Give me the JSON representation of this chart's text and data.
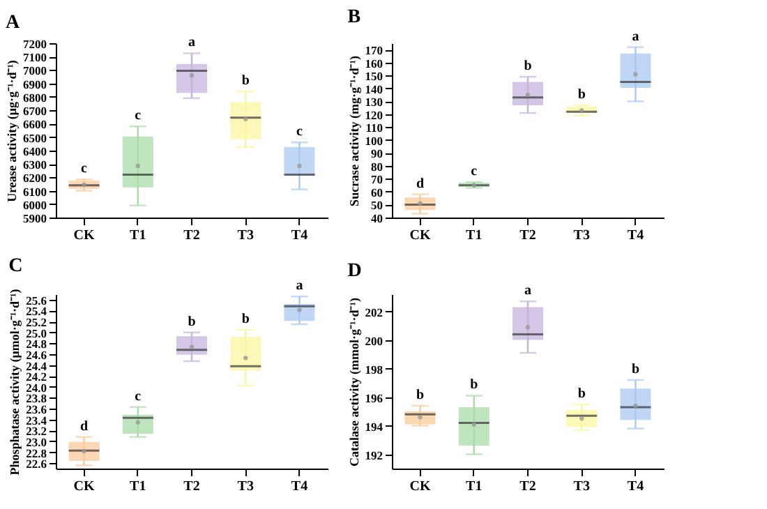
{
  "chart_data": [
    {
      "type": "box",
      "title": "A",
      "ylabel": "Urease activity (μg·g⁻¹·d⁻¹)",
      "categories": [
        "CK",
        "T1",
        "T2",
        "T3",
        "T4"
      ],
      "colors": [
        "#fbc99a",
        "#a8dca8",
        "#c5b3dd",
        "#fbf5a0",
        "#a9c8f2"
      ],
      "ylim": [
        5900,
        7200
      ],
      "yticks": [
        5900,
        6000,
        6100,
        6200,
        6300,
        6400,
        6500,
        6600,
        6700,
        6800,
        6900,
        7000,
        7100,
        7200
      ],
      "grid": false,
      "boxes": [
        {
          "low": 6100,
          "q1": 6115,
          "median": 6140,
          "q3": 6175,
          "high": 6185,
          "mean": 6145
        },
        {
          "low": 5990,
          "q1": 6125,
          "median": 6220,
          "q3": 6505,
          "high": 6580,
          "mean": 6285
        },
        {
          "low": 6790,
          "q1": 6830,
          "median": 6995,
          "q3": 7045,
          "high": 7125,
          "mean": 6960
        },
        {
          "low": 6425,
          "q1": 6485,
          "median": 6645,
          "q3": 6760,
          "high": 6840,
          "mean": 6635
        },
        {
          "low": 6110,
          "q1": 6215,
          "median": 6220,
          "q3": 6425,
          "high": 6460,
          "mean": 6285
        }
      ],
      "annotations": [
        {
          "text": "c",
          "x": "CK",
          "y": 6185
        },
        {
          "text": "c",
          "x": "T1",
          "y": 6580
        },
        {
          "text": "a",
          "x": "T2",
          "y": 7125
        },
        {
          "text": "b",
          "x": "T3",
          "y": 6840
        },
        {
          "text": "c",
          "x": "T4",
          "y": 6460
        }
      ]
    },
    {
      "type": "box",
      "title": "B",
      "ylabel": "Sucrase activity (mg·g⁻¹·d⁻¹)",
      "categories": [
        "CK",
        "T1",
        "T2",
        "T3",
        "T4"
      ],
      "colors": [
        "#fbc99a",
        "#a8dca8",
        "#c5b3dd",
        "#fbf5a0",
        "#a9c8f2"
      ],
      "ylim": [
        40,
        175
      ],
      "yticks": [
        40,
        50,
        60,
        70,
        80,
        90,
        100,
        110,
        120,
        130,
        140,
        150,
        160,
        170
      ],
      "grid": false,
      "boxes": [
        {
          "low": 43,
          "q1": 46,
          "median": 50,
          "q3": 55.5,
          "high": 58,
          "mean": 51
        },
        {
          "low": 63,
          "q1": 64,
          "median": 65,
          "q3": 67,
          "high": 67.5,
          "mean": 65
        },
        {
          "low": 121,
          "q1": 127,
          "median": 133,
          "q3": 145,
          "high": 149,
          "mean": 135
        },
        {
          "low": 119,
          "q1": 121,
          "median": 122,
          "q3": 126,
          "high": 127,
          "mean": 123
        },
        {
          "low": 130,
          "q1": 140.5,
          "median": 145,
          "q3": 167,
          "high": 172,
          "mean": 151
        }
      ],
      "annotations": [
        {
          "text": "d",
          "x": "CK",
          "y": 58
        },
        {
          "text": "c",
          "x": "T1",
          "y": 67.5
        },
        {
          "text": "b",
          "x": "T2",
          "y": 149
        },
        {
          "text": "b",
          "x": "T3",
          "y": 127
        },
        {
          "text": "a",
          "x": "T4",
          "y": 172
        }
      ]
    },
    {
      "type": "box",
      "title": "C",
      "ylabel": "Phosphatase activity (μmol·g⁻¹·d⁻¹)",
      "categories": [
        "CK",
        "T1",
        "T2",
        "T3",
        "T4"
      ],
      "colors": [
        "#fbc99a",
        "#a8dca8",
        "#c5b3dd",
        "#fbf5a0",
        "#a9c8f2"
      ],
      "ylim": [
        22.5,
        25.7
      ],
      "yticks": [
        22.6,
        22.8,
        {
          "value": 23,
          "label": "23.0"
        },
        23.2,
        23.4,
        23.6,
        23.8,
        {
          "value": 24,
          "label": "24.0"
        },
        24.2,
        24.4,
        24.6,
        24.8,
        {
          "value": 25,
          "label": "25.0"
        },
        25.2,
        25.4,
        25.6
      ],
      "grid": false,
      "boxes": [
        {
          "low": 22.56,
          "q1": 22.64,
          "median": 22.83,
          "q3": 22.99,
          "high": 23.08,
          "mean": 22.82
        },
        {
          "low": 23.08,
          "q1": 23.14,
          "median": 23.43,
          "q3": 23.49,
          "high": 23.63,
          "mean": 23.35
        },
        {
          "low": 24.47,
          "q1": 24.59,
          "median": 24.68,
          "q3": 24.93,
          "high": 25.0,
          "mean": 24.73
        },
        {
          "low": 24.02,
          "q1": 24.3,
          "median": 24.38,
          "q3": 24.92,
          "high": 25.05,
          "mean": 24.53
        },
        {
          "low": 25.15,
          "q1": 25.21,
          "median": 25.48,
          "q3": 25.52,
          "high": 25.66,
          "mean": 25.41
        }
      ],
      "annotations": [
        {
          "text": "d",
          "x": "CK",
          "y": 23.08
        },
        {
          "text": "c",
          "x": "T1",
          "y": 23.63
        },
        {
          "text": "b",
          "x": "T2",
          "y": 25.0
        },
        {
          "text": "b",
          "x": "T3",
          "y": 25.05
        },
        {
          "text": "a",
          "x": "T4",
          "y": 25.66
        }
      ]
    },
    {
      "type": "box",
      "title": "D",
      "ylabel": "Catalase activity (mmol·g⁻¹·d⁻¹)",
      "categories": [
        "CK",
        "T1",
        "T2",
        "T3",
        "T4"
      ],
      "colors": [
        "#fbc99a",
        "#a8dca8",
        "#c5b3dd",
        "#fbf5a0",
        "#a9c8f2"
      ],
      "ylim": [
        191,
        203.2
      ],
      "yticks": [
        192,
        194,
        196,
        198,
        200,
        202
      ],
      "grid": false,
      "boxes": [
        {
          "low": 194.0,
          "q1": 194.1,
          "median": 194.8,
          "q3": 195.0,
          "high": 195.4,
          "mean": 194.6
        },
        {
          "low": 192.0,
          "q1": 192.6,
          "median": 194.2,
          "q3": 195.3,
          "high": 196.1,
          "mean": 194.1
        },
        {
          "low": 199.1,
          "q1": 200.0,
          "median": 200.4,
          "q3": 202.3,
          "high": 202.7,
          "mean": 200.9
        },
        {
          "low": 193.7,
          "q1": 193.9,
          "median": 194.7,
          "q3": 195.1,
          "high": 195.5,
          "mean": 194.5
        },
        {
          "low": 193.8,
          "q1": 194.4,
          "median": 195.3,
          "q3": 196.6,
          "high": 197.2,
          "mean": 195.4
        }
      ],
      "annotations": [
        {
          "text": "b",
          "x": "CK",
          "y": 195.4
        },
        {
          "text": "b",
          "x": "T1",
          "y": 196.1
        },
        {
          "text": "a",
          "x": "T2",
          "y": 202.7
        },
        {
          "text": "b",
          "x": "T3",
          "y": 195.5
        },
        {
          "text": "b",
          "x": "T4",
          "y": 197.2
        }
      ]
    }
  ]
}
